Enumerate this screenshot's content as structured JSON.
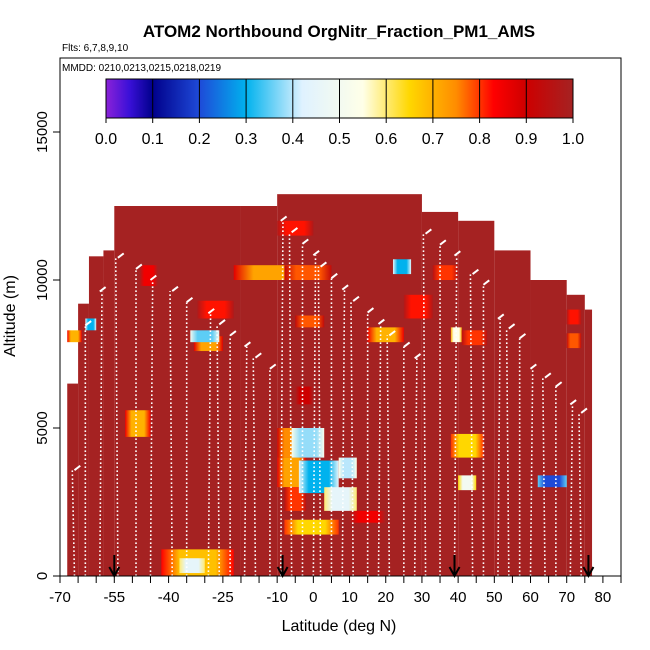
{
  "chart_data": {
    "type": "heatmap",
    "title": "ATOM2 Northbound OrgNitr_Fraction_PM1_AMS",
    "flights_note": "Flts: 6,7,8,9,10",
    "dates_note": "MMDD: 0210,0213,0215,0218,0219",
    "xlabel": "Latitude (deg N)",
    "ylabel": "Altitude (m)",
    "xlim": [
      -70,
      85
    ],
    "ylim": [
      0,
      17500
    ],
    "x_ticks": [
      -70,
      -55,
      -40,
      -25,
      -10,
      0,
      10,
      20,
      30,
      40,
      50,
      60,
      70,
      80
    ],
    "x_tick_labels": [
      "-70",
      "-55",
      "-40",
      "-25",
      "-10",
      "0",
      "10",
      "20",
      "30",
      "40",
      "50",
      "60",
      "70",
      "80"
    ],
    "x_minor_ticks": [
      -65,
      -60,
      -50,
      -45,
      -35,
      -30,
      -20,
      -15,
      -5,
      5,
      15,
      25,
      35,
      45,
      55,
      65,
      75,
      85
    ],
    "y_ticks": [
      0,
      5000,
      10000,
      15000
    ],
    "y_tick_labels": [
      "0",
      "5000",
      "10000",
      "15000"
    ],
    "colorbar": {
      "ticks": [
        0.0,
        0.1,
        0.2,
        0.3,
        0.4,
        0.5,
        0.6,
        0.7,
        0.8,
        0.9,
        1.0
      ],
      "tick_labels": [
        "0.0",
        "0.1",
        "0.2",
        "0.3",
        "0.4",
        "0.5",
        "0.6",
        "0.7",
        "0.8",
        "0.9",
        "1.0"
      ],
      "stops": [
        {
          "v": 0.0,
          "color": "#8b22d8"
        },
        {
          "v": 0.05,
          "color": "#3a10d8"
        },
        {
          "v": 0.1,
          "color": "#00008b"
        },
        {
          "v": 0.2,
          "color": "#1e4ad8"
        },
        {
          "v": 0.3,
          "color": "#00b2ee"
        },
        {
          "v": 0.42,
          "color": "#dff2ff"
        },
        {
          "v": 0.55,
          "color": "#ffffe8"
        },
        {
          "v": 0.65,
          "color": "#ffd700"
        },
        {
          "v": 0.75,
          "color": "#ff8c00"
        },
        {
          "v": 0.83,
          "color": "#ff0000"
        },
        {
          "v": 0.9,
          "color": "#cd0000"
        },
        {
          "v": 1.0,
          "color": "#a52222"
        }
      ]
    },
    "background_value": 1.0,
    "field_envelope": [
      [
        -68,
        0,
        6500
      ],
      [
        -65,
        0,
        9200
      ],
      [
        -62,
        0,
        10800
      ],
      [
        -58,
        0,
        11000
      ],
      [
        -55,
        0,
        12500
      ],
      [
        -20,
        0,
        12500
      ],
      [
        -10,
        0,
        12900
      ],
      [
        30,
        0,
        12300
      ],
      [
        40,
        0,
        12000
      ],
      [
        50,
        0,
        11000
      ],
      [
        60,
        0,
        10000
      ],
      [
        70,
        0,
        9500
      ],
      [
        75,
        0,
        9000
      ],
      [
        77,
        0,
        7000
      ]
    ],
    "anomalies": [
      {
        "x": [
          -68,
          -64
        ],
        "y": [
          7900,
          8300
        ],
        "v": 0.7
      },
      {
        "x": [
          -63,
          -60
        ],
        "y": [
          8300,
          8700
        ],
        "v": 0.3
      },
      {
        "x": [
          -52,
          -45
        ],
        "y": [
          4700,
          5600
        ],
        "v": 0.7
      },
      {
        "x": [
          -48,
          -43
        ],
        "y": [
          9800,
          10500
        ],
        "v": 0.85
      },
      {
        "x": [
          -33,
          -25
        ],
        "y": [
          7600,
          8100
        ],
        "v": 0.72
      },
      {
        "x": [
          -34,
          -26
        ],
        "y": [
          7900,
          8300
        ],
        "v": 0.35
      },
      {
        "x": [
          -32,
          -22
        ],
        "y": [
          8700,
          9300
        ],
        "v": 0.82
      },
      {
        "x": [
          -42,
          -22
        ],
        "y": [
          0,
          900
        ],
        "v": 0.68
      },
      {
        "x": [
          -37,
          -30
        ],
        "y": [
          100,
          600
        ],
        "v": 0.45
      },
      {
        "x": [
          -22,
          0
        ],
        "y": [
          10000,
          10500
        ],
        "v": 0.72
      },
      {
        "x": [
          -10,
          0
        ],
        "y": [
          11500,
          12000
        ],
        "v": 0.82
      },
      {
        "x": [
          -8,
          5
        ],
        "y": [
          10000,
          10500
        ],
        "v": 0.78
      },
      {
        "x": [
          -5,
          3
        ],
        "y": [
          8400,
          8800
        ],
        "v": 0.78
      },
      {
        "x": [
          -5,
          0
        ],
        "y": [
          5800,
          6400
        ],
        "v": 0.9
      },
      {
        "x": [
          -10,
          -2
        ],
        "y": [
          4000,
          5000
        ],
        "v": 0.75
      },
      {
        "x": [
          -10,
          -2
        ],
        "y": [
          3000,
          4000
        ],
        "v": 0.72
      },
      {
        "x": [
          -8,
          -2
        ],
        "y": [
          2200,
          3000
        ],
        "v": 0.8
      },
      {
        "x": [
          -8,
          7
        ],
        "y": [
          1400,
          1900
        ],
        "v": 0.65
      },
      {
        "x": [
          -6,
          3
        ],
        "y": [
          4000,
          5000
        ],
        "v": 0.38
      },
      {
        "x": [
          -4,
          7
        ],
        "y": [
          2800,
          3900
        ],
        "v": 0.3
      },
      {
        "x": [
          3,
          12
        ],
        "y": [
          2200,
          3000
        ],
        "v": 0.45
      },
      {
        "x": [
          7,
          12
        ],
        "y": [
          3300,
          4000
        ],
        "v": 0.4
      },
      {
        "x": [
          10,
          20
        ],
        "y": [
          1800,
          2200
        ],
        "v": 0.85
      },
      {
        "x": [
          15,
          25
        ],
        "y": [
          7900,
          8400
        ],
        "v": 0.7
      },
      {
        "x": [
          25,
          33
        ],
        "y": [
          8700,
          9500
        ],
        "v": 0.82
      },
      {
        "x": [
          22,
          27
        ],
        "y": [
          10200,
          10700
        ],
        "v": 0.3
      },
      {
        "x": [
          33,
          40
        ],
        "y": [
          10000,
          10500
        ],
        "v": 0.8
      },
      {
        "x": [
          38,
          41
        ],
        "y": [
          7900,
          8400
        ],
        "v": 0.55
      },
      {
        "x": [
          41,
          48
        ],
        "y": [
          7800,
          8300
        ],
        "v": 0.8
      },
      {
        "x": [
          38,
          47
        ],
        "y": [
          4000,
          4800
        ],
        "v": 0.65
      },
      {
        "x": [
          40,
          45
        ],
        "y": [
          2900,
          3400
        ],
        "v": 0.5
      },
      {
        "x": [
          62,
          70
        ],
        "y": [
          3000,
          3400
        ],
        "v": 0.2
      },
      {
        "x": [
          70,
          74
        ],
        "y": [
          7700,
          8200
        ],
        "v": 0.78
      },
      {
        "x": [
          70,
          74
        ],
        "y": [
          8500,
          9000
        ],
        "v": 0.82
      }
    ],
    "flight_tracks_x": [
      -66,
      -63,
      -59,
      -54,
      -49,
      -45,
      -39,
      -35,
      -29,
      -26,
      -23,
      -19,
      -16,
      -12,
      -9,
      -6,
      -3,
      0,
      2,
      5,
      8,
      11,
      15,
      18,
      21,
      25,
      28,
      31,
      35,
      39,
      44,
      47,
      51,
      54,
      57,
      60,
      64,
      67,
      71,
      74
    ],
    "sounding_markers": [
      {
        "x": -55,
        "label": "arrow"
      },
      {
        "x": -8.5,
        "label": "arrow"
      },
      {
        "x": 39,
        "label": "arrow"
      },
      {
        "x": 76,
        "label": "arrow"
      }
    ]
  }
}
